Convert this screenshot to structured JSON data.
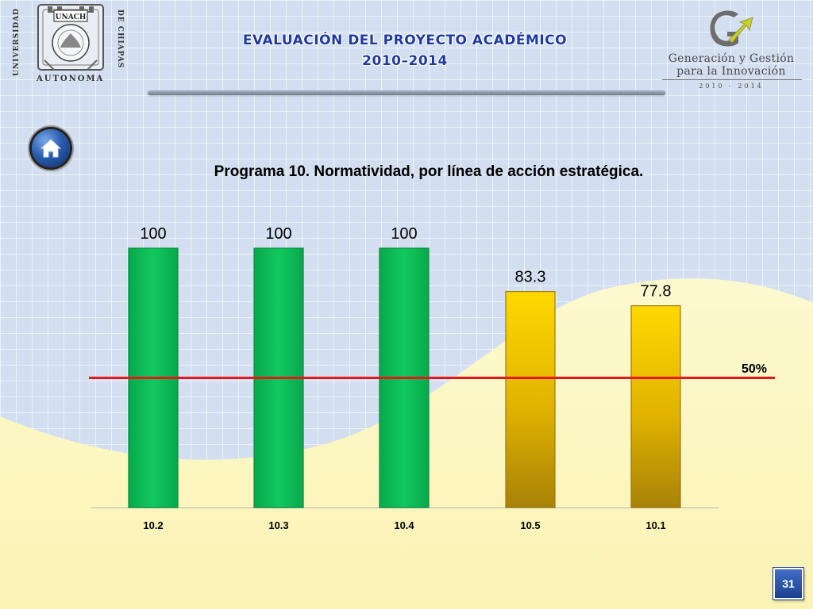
{
  "header": {
    "title_line1": "EVALUACIÓN DEL PROYECTO ACADÉMICO",
    "title_line2": "2010–2014"
  },
  "logo_left": {
    "top_text": "UNACH",
    "left_text": "UNIVERSIDAD",
    "right_text": "DE CHIAPAS",
    "bottom_text": "AUTONOMA"
  },
  "logo_right": {
    "line1": "Generación y Gestión",
    "line2": "para la Innovación",
    "years": "2010 - 2014"
  },
  "icons": {
    "home": "home-icon"
  },
  "colors": {
    "green_bar": "#0bbd57",
    "gold_bar": "#f3c300",
    "reference_line": "#e8161b",
    "title_blue": "#1f3aa0"
  },
  "chart_data": {
    "type": "bar",
    "title": "Programa 10. Normatividad, por línea de acción estratégica.",
    "categories": [
      "10.2",
      "10.3",
      "10.4",
      "10.5",
      "10.1"
    ],
    "values": [
      100,
      100,
      100,
      83.3,
      77.8
    ],
    "value_labels": [
      "100",
      "100",
      "100",
      "83.3",
      "77.8"
    ],
    "bar_colors": [
      "#0bbd57",
      "#0bbd57",
      "#0bbd57",
      "#f3c300",
      "#f3c300"
    ],
    "reference_line": {
      "value": 50,
      "label": "50%",
      "color": "#e8161b"
    },
    "ylim": [
      0,
      100
    ],
    "xlabel": "",
    "ylabel": "",
    "grid": false
  },
  "page_number": "31"
}
